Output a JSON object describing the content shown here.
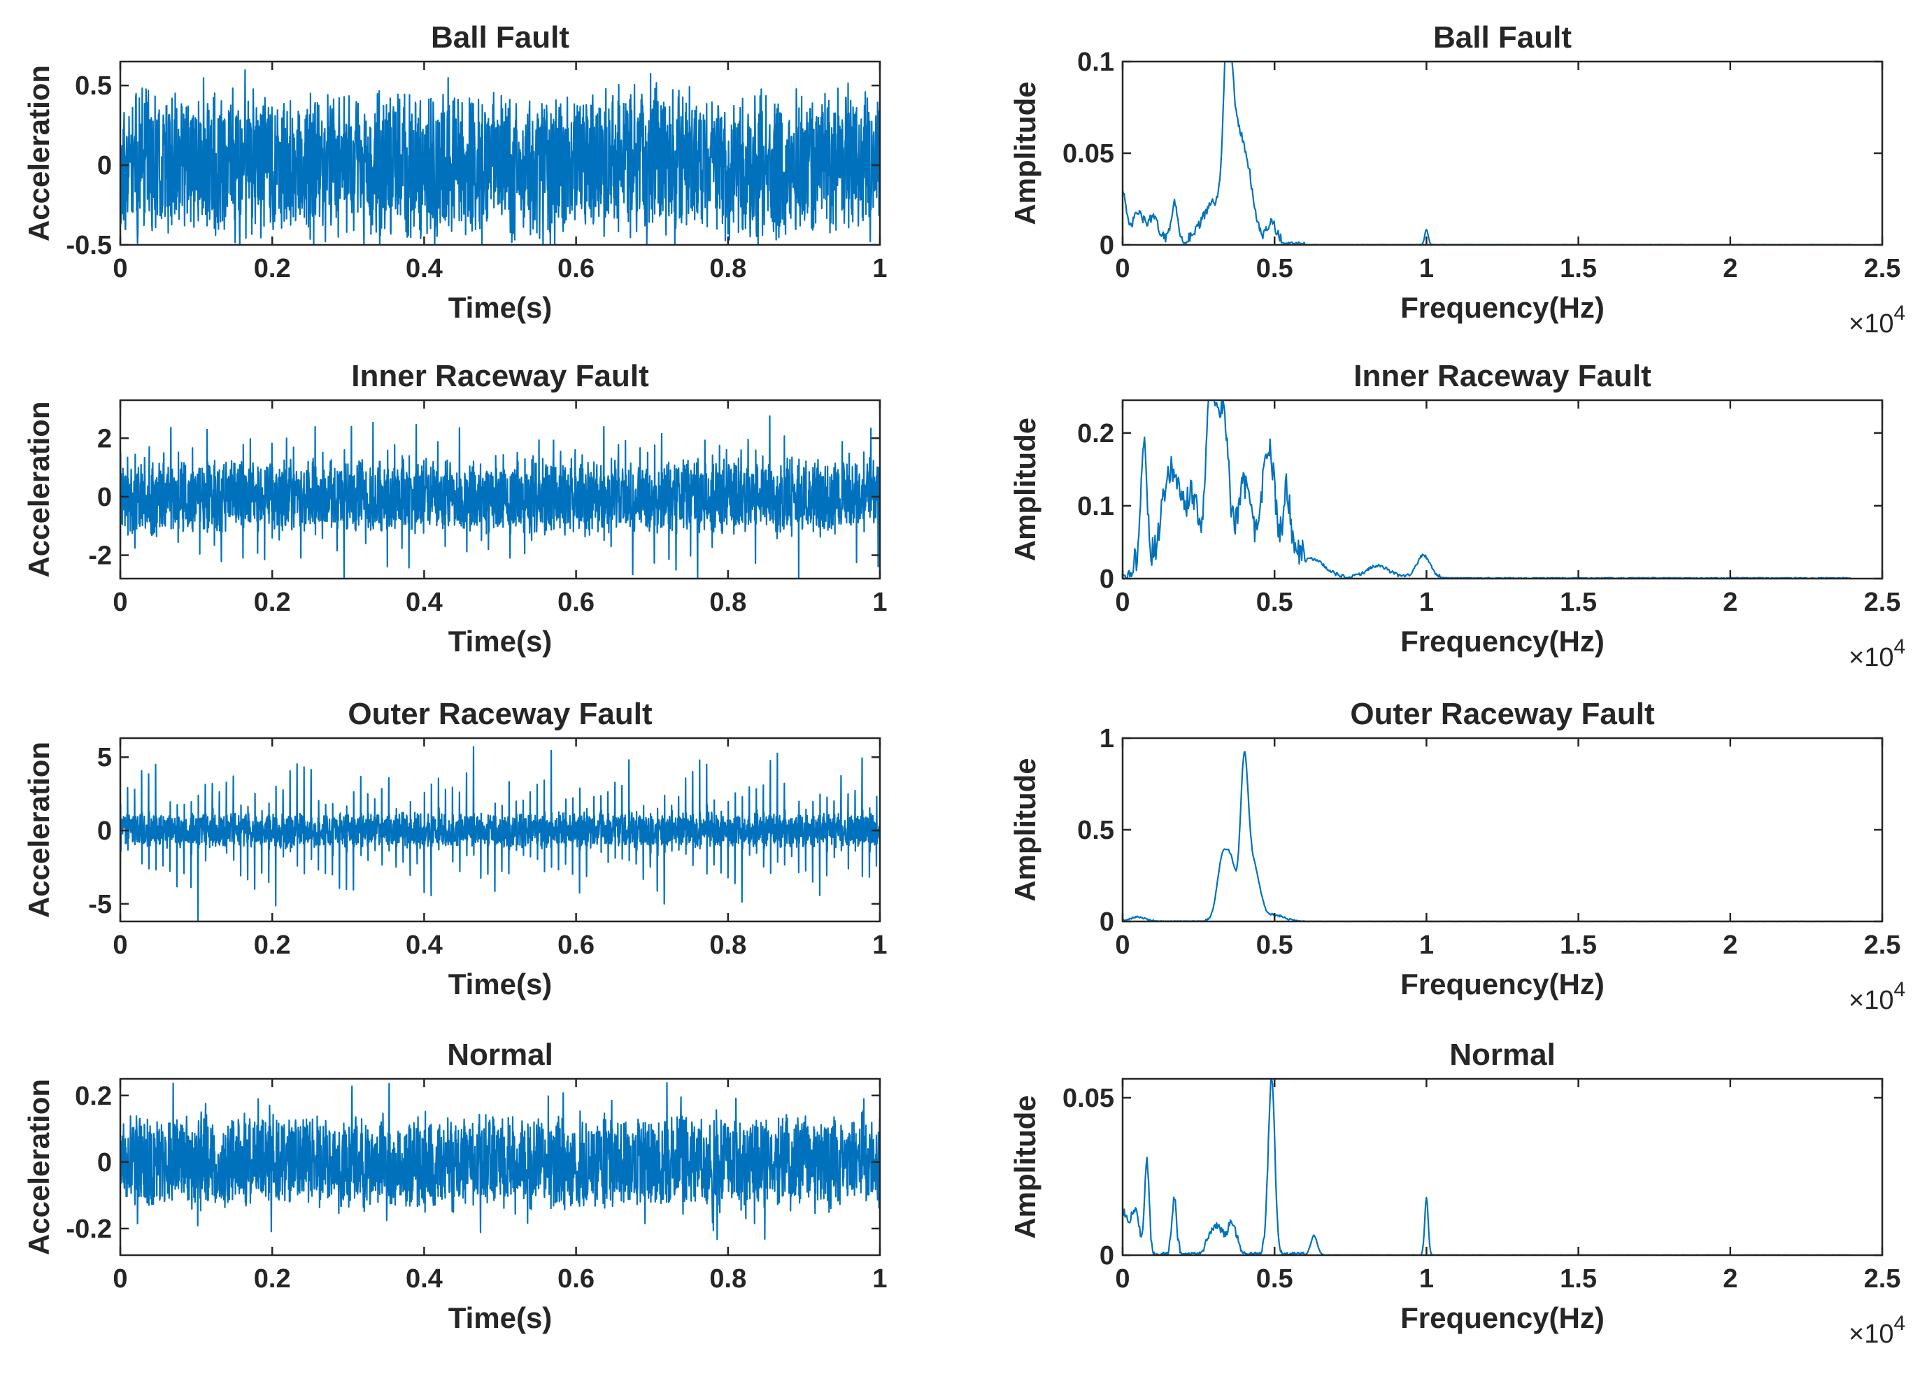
{
  "series_color": "#0072BD",
  "chart_data": [
    {
      "type": "line",
      "title": "Ball Fault",
      "xlabel": "Time(s)",
      "ylabel": "Acceleration",
      "xlim": [
        0,
        1
      ],
      "ylim": [
        -0.5,
        0.65
      ],
      "xticks": [
        0,
        0.2,
        0.4,
        0.6,
        0.8,
        1
      ],
      "xticklabels": [
        "0",
        "0.2",
        "0.4",
        "0.6",
        "0.8",
        "1"
      ],
      "yticks": [
        -0.5,
        0,
        0.5
      ],
      "yticklabels": [
        "-0.5",
        "0",
        "0.5"
      ],
      "signal": {
        "kind": "noise",
        "amp": 0.5,
        "spike_period": 0,
        "spike_amp": 0.6,
        "min": -0.5,
        "max": 0.65,
        "seed": 11
      }
    },
    {
      "type": "line",
      "title": "Ball Fault",
      "xlabel": "Frequency(Hz)",
      "ylabel": "Amplitude",
      "xlim": [
        0,
        25000
      ],
      "ylim": [
        0,
        0.1
      ],
      "x_multiplier": "×10^4",
      "xticks": [
        0,
        5000,
        10000,
        15000,
        20000,
        25000
      ],
      "xticklabels": [
        "0",
        "0.5",
        "1",
        "1.5",
        "2",
        "2.5"
      ],
      "yticks": [
        0,
        0.05,
        0.1
      ],
      "yticklabels": [
        "0",
        "0.05",
        "0.1"
      ],
      "peaks": [
        [
          0,
          0.028,
          150
        ],
        [
          500,
          0.015,
          250
        ],
        [
          1000,
          0.012,
          250
        ],
        [
          1700,
          0.02,
          150
        ],
        [
          2500,
          0.004,
          300
        ],
        [
          3000,
          0.02,
          400
        ],
        [
          3450,
          0.094,
          180
        ],
        [
          3700,
          0.055,
          300
        ],
        [
          4100,
          0.035,
          300
        ],
        [
          4900,
          0.01,
          200
        ],
        [
          10000,
          0.008,
          80
        ]
      ],
      "x_end": 24000,
      "noise": 0.005
    },
    {
      "type": "line",
      "title": "Inner Raceway Fault",
      "xlabel": "Time(s)",
      "ylabel": "Acceleration",
      "xlim": [
        0,
        1
      ],
      "ylim": [
        -2.8,
        3.3
      ],
      "xticks": [
        0,
        0.2,
        0.4,
        0.6,
        0.8,
        1
      ],
      "xticklabels": [
        "0",
        "0.2",
        "0.4",
        "0.6",
        "0.8",
        "1"
      ],
      "yticks": [
        -2,
        0,
        2
      ],
      "yticklabels": [
        "-2",
        "0",
        "2"
      ],
      "signal": {
        "kind": "impulsive",
        "amp": 1.4,
        "spike_period": 0.0095,
        "spike_amp": 3.0,
        "min": -2.8,
        "max": 3.3,
        "seed": 23
      }
    },
    {
      "type": "line",
      "title": "Inner Raceway Fault",
      "xlabel": "Frequency(Hz)",
      "ylabel": "Amplitude",
      "xlim": [
        0,
        25000
      ],
      "ylim": [
        0,
        0.245
      ],
      "x_multiplier": "×10^4",
      "xticks": [
        0,
        5000,
        10000,
        15000,
        20000,
        25000
      ],
      "xticklabels": [
        "0",
        "0.5",
        "1",
        "1.5",
        "2",
        "2.5"
      ],
      "yticks": [
        0,
        0.1,
        0.2
      ],
      "yticklabels": [
        "0",
        "0.1",
        "0.2"
      ],
      "peaks": [
        [
          700,
          0.16,
          150
        ],
        [
          1600,
          0.13,
          400
        ],
        [
          2300,
          0.09,
          300
        ],
        [
          2900,
          0.245,
          200
        ],
        [
          3300,
          0.22,
          250
        ],
        [
          4000,
          0.11,
          300
        ],
        [
          4800,
          0.16,
          300
        ],
        [
          5400,
          0.1,
          150
        ],
        [
          6200,
          0.025,
          600
        ],
        [
          8400,
          0.015,
          500
        ],
        [
          9900,
          0.03,
          300
        ]
      ],
      "x_end": 24000,
      "noise": 0.04
    },
    {
      "type": "line",
      "title": "Outer Raceway Fault",
      "xlabel": "Time(s)",
      "ylabel": "Acceleration",
      "xlim": [
        0,
        1
      ],
      "ylim": [
        -6.2,
        6.3
      ],
      "xticks": [
        0,
        0.2,
        0.4,
        0.6,
        0.8,
        1
      ],
      "xticklabels": [
        "0",
        "0.2",
        "0.4",
        "0.6",
        "0.8",
        "1"
      ],
      "yticks": [
        -5,
        0,
        5
      ],
      "yticklabels": [
        "-5",
        "0",
        "5"
      ],
      "signal": {
        "kind": "impulsive",
        "amp": 1.3,
        "spike_period": 0.0093,
        "spike_amp": 6.0,
        "min": -6.2,
        "max": 6.3,
        "seed": 37
      }
    },
    {
      "type": "line",
      "title": "Outer Raceway Fault",
      "xlabel": "Frequency(Hz)",
      "ylabel": "Amplitude",
      "xlim": [
        0,
        25000
      ],
      "ylim": [
        0,
        1
      ],
      "x_multiplier": "×10^4",
      "xticks": [
        0,
        5000,
        10000,
        15000,
        20000,
        25000
      ],
      "xticklabels": [
        "0",
        "0.5",
        "1",
        "1.5",
        "2",
        "2.5"
      ],
      "yticks": [
        0,
        0.5,
        1
      ],
      "yticklabels": [
        "0",
        "0.5",
        "1"
      ],
      "peaks": [
        [
          500,
          0.02,
          300
        ],
        [
          3300,
          0.35,
          250
        ],
        [
          3600,
          0.25,
          200
        ],
        [
          4000,
          0.8,
          180
        ],
        [
          4300,
          0.3,
          300
        ],
        [
          5000,
          0.03,
          400
        ]
      ],
      "x_end": 24000,
      "noise": 0.01
    },
    {
      "type": "line",
      "title": "Normal",
      "xlabel": "Time(s)",
      "ylabel": "Acceleration",
      "xlim": [
        0,
        1
      ],
      "ylim": [
        -0.28,
        0.25
      ],
      "xticks": [
        0,
        0.2,
        0.4,
        0.6,
        0.8,
        1
      ],
      "xticklabels": [
        "0",
        "0.2",
        "0.4",
        "0.6",
        "0.8",
        "1"
      ],
      "yticks": [
        -0.2,
        0,
        0.2
      ],
      "yticklabels": [
        "-0.2",
        "0",
        "0.2"
      ],
      "signal": {
        "kind": "noise",
        "amp": 0.16,
        "spike_period": 0,
        "spike_amp": 0.24,
        "min": -0.28,
        "max": 0.25,
        "seed": 53
      }
    },
    {
      "type": "line",
      "title": "Normal",
      "xlabel": "Frequency(Hz)",
      "ylabel": "Amplitude",
      "xlim": [
        0,
        25000
      ],
      "ylim": [
        0,
        0.056
      ],
      "x_multiplier": "×10^4",
      "xticks": [
        0,
        5000,
        10000,
        15000,
        20000,
        25000
      ],
      "xticklabels": [
        "0",
        "0.5",
        "1",
        "1.5",
        "2",
        "2.5"
      ],
      "yticks": [
        0,
        0.05
      ],
      "yticklabels": [
        "0",
        "0.05"
      ],
      "peaks": [
        [
          0,
          0.012,
          200
        ],
        [
          400,
          0.013,
          200
        ],
        [
          800,
          0.028,
          100
        ],
        [
          1700,
          0.017,
          100
        ],
        [
          3100,
          0.008,
          300
        ],
        [
          3600,
          0.008,
          200
        ],
        [
          4900,
          0.055,
          150
        ],
        [
          6300,
          0.006,
          150
        ],
        [
          10000,
          0.018,
          80
        ]
      ],
      "x_end": 24000,
      "noise": 0.003
    }
  ]
}
